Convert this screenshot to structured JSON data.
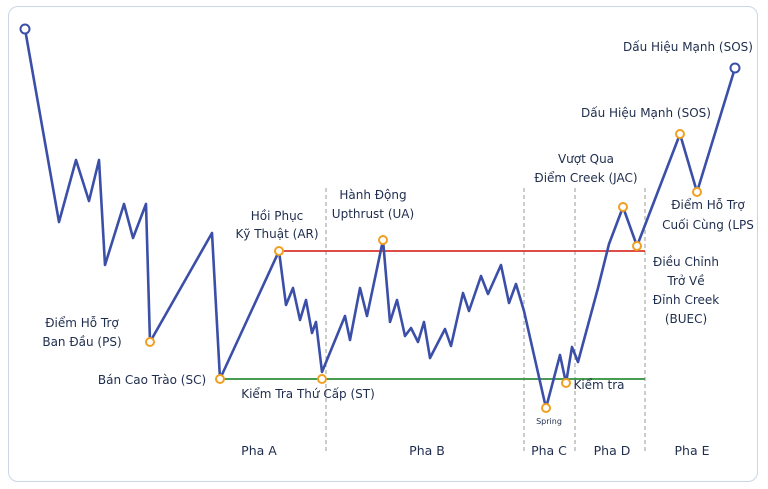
{
  "colors": {
    "price_line": "#3b4fa8",
    "resistance": "#d9342b",
    "support": "#2f8f3a",
    "point_fill": "#ffffff",
    "point_stroke": "#f0a021",
    "end_point_stroke": "#3b4fa8",
    "phase_divider": "#9a9a9a"
  },
  "annotations": {
    "ps": [
      "Điểm Hỗ Trợ",
      "Ban Đầu (PS)"
    ],
    "sc": "Bán Cao Trào (SC)",
    "ar": [
      "Hồi Phục",
      "Kỹ Thuật (AR)"
    ],
    "st": "Kiểm Tra Thứ Cấp (ST)",
    "ua": [
      "Hành Động",
      "Upthrust (UA)"
    ],
    "jac": [
      "Vượt Qua",
      "Điểm Creek (JAC)"
    ],
    "spring": "Spring",
    "test": "Kiểm tra",
    "sos1": "Dấu Hiệu Mạnh (SOS)",
    "sos2": "Dấu Hiệu Mạnh (SOS)",
    "lps": [
      "Điểm Hỗ Trợ",
      "Cuối Cùng (LPS"
    ],
    "buec": [
      "Điều Chỉnh",
      "Trở Về",
      "Đỉnh Creek",
      "(BUEC)"
    ]
  },
  "phases": [
    "Pha A",
    "Pha B",
    "Pha C",
    "Pha D",
    "Pha E"
  ]
}
